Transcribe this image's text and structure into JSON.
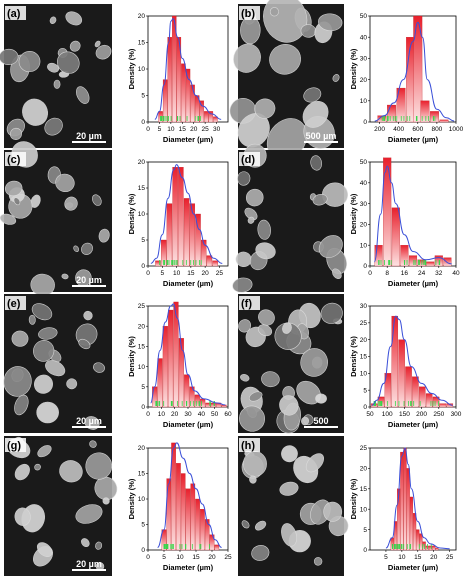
{
  "panels": [
    {
      "letter": "(a)",
      "scale": "20 µm",
      "ylabel": "Density (%)",
      "xlabel": "Diameter (µm)"
    },
    {
      "letter": "(b)",
      "scale": "500 µm",
      "ylabel": "Density (%)",
      "xlabel": "Diameter (µm)"
    },
    {
      "letter": "(c)",
      "scale": "20 µm",
      "ylabel": "Density (%)",
      "xlabel": "Diameter (µm)"
    },
    {
      "letter": "(d)",
      "scale": "",
      "ylabel": "Density (%)",
      "xlabel": "Diameter (µm)"
    },
    {
      "letter": "(e)",
      "scale": "20 µm",
      "ylabel": "Density (%)",
      "xlabel": "Diameter (µm)"
    },
    {
      "letter": "(f)",
      "scale": "500",
      "ylabel": "Density (%)",
      "xlabel": "Diameter (µm)"
    },
    {
      "letter": "(g)",
      "scale": "20 µm",
      "ylabel": "Density (%)",
      "xlabel": "Diameter (µm)"
    },
    {
      "letter": "(h)",
      "scale": "",
      "ylabel": "Density (%)",
      "xlabel": "Diameter (µm)"
    }
  ],
  "colors": {
    "bar_top": "#e8202c",
    "bar_bottom": "#fde3e3",
    "curve": "#3a4fd8",
    "rug": "#38d64a"
  },
  "chart_data": [
    {
      "type": "bar",
      "xlim": [
        0,
        35
      ],
      "ylim": [
        0,
        20
      ],
      "xticks": [
        0,
        5,
        10,
        15,
        20,
        25,
        30
      ],
      "yticks": [
        0,
        5,
        10,
        15,
        20
      ],
      "x": [
        5.5,
        7.5,
        9.5,
        11.5,
        13.5,
        15.5,
        17.5,
        19.5,
        21.5,
        23.5,
        25.5,
        27.5,
        29.5
      ],
      "values": [
        2,
        8,
        16,
        20,
        16,
        11,
        10,
        7,
        5,
        4,
        2,
        2,
        1
      ],
      "curve": [
        [
          3,
          0.5
        ],
        [
          5,
          2
        ],
        [
          7,
          7
        ],
        [
          9,
          15
        ],
        [
          10,
          19
        ],
        [
          11,
          19.5
        ],
        [
          13,
          16
        ],
        [
          15,
          12
        ],
        [
          18,
          8
        ],
        [
          21,
          5
        ],
        [
          24,
          3
        ],
        [
          28,
          1.5
        ],
        [
          32,
          0.5
        ]
      ]
    },
    {
      "type": "bar",
      "xlim": [
        100,
        1000
      ],
      "ylim": [
        0,
        50
      ],
      "xticks": [
        200,
        400,
        600,
        800,
        1000
      ],
      "yticks": [
        0,
        10,
        20,
        30,
        40,
        50
      ],
      "x": [
        225,
        325,
        425,
        525,
        600,
        675,
        775,
        875
      ],
      "values": [
        3,
        8,
        16,
        40,
        50,
        10,
        5,
        1
      ],
      "curve": [
        [
          150,
          0.5
        ],
        [
          250,
          3
        ],
        [
          350,
          9
        ],
        [
          450,
          20
        ],
        [
          550,
          38
        ],
        [
          600,
          47
        ],
        [
          650,
          40
        ],
        [
          700,
          20
        ],
        [
          800,
          6
        ],
        [
          900,
          2
        ],
        [
          980,
          0.5
        ]
      ]
    },
    {
      "type": "bar",
      "xlim": [
        0,
        28
      ],
      "ylim": [
        0,
        20
      ],
      "xticks": [
        0,
        5,
        10,
        15,
        20,
        25
      ],
      "yticks": [
        0,
        5,
        10,
        15,
        20
      ],
      "x": [
        3.5,
        5.5,
        7.5,
        9.5,
        11.5,
        13.5,
        15.5,
        17.5,
        19.5,
        21.5,
        23.5
      ],
      "values": [
        1,
        5,
        12,
        19,
        19,
        13,
        12,
        10,
        5,
        2,
        1
      ],
      "curve": [
        [
          1,
          0.5
        ],
        [
          3,
          1.5
        ],
        [
          5,
          6
        ],
        [
          7,
          13
        ],
        [
          9,
          18.5
        ],
        [
          10,
          19.5
        ],
        [
          12,
          17
        ],
        [
          14,
          14
        ],
        [
          16,
          10
        ],
        [
          18,
          7
        ],
        [
          20,
          4
        ],
        [
          23,
          1.5
        ],
        [
          26,
          0.5
        ]
      ]
    },
    {
      "type": "bar",
      "xlim": [
        0,
        40
      ],
      "ylim": [
        0,
        50
      ],
      "xticks": [
        0,
        8,
        16,
        24,
        32,
        40
      ],
      "yticks": [
        0,
        10,
        20,
        30,
        40,
        50
      ],
      "x": [
        4,
        8,
        12,
        16,
        20,
        24,
        28,
        32,
        36
      ],
      "values": [
        10,
        52,
        28,
        10,
        5,
        3,
        2,
        5,
        4
      ],
      "curve": [
        [
          2,
          2
        ],
        [
          5,
          25
        ],
        [
          7,
          45
        ],
        [
          8,
          48
        ],
        [
          10,
          40
        ],
        [
          12,
          30
        ],
        [
          16,
          15
        ],
        [
          20,
          7
        ],
        [
          26,
          3
        ],
        [
          32,
          4
        ],
        [
          38,
          1
        ]
      ]
    },
    {
      "type": "bar",
      "xlim": [
        0,
        60
      ],
      "ylim": [
        0,
        25
      ],
      "xticks": [
        0,
        10,
        20,
        30,
        40,
        50,
        60
      ],
      "yticks": [
        0,
        5,
        10,
        15,
        20,
        25
      ],
      "x": [
        5,
        9,
        13,
        17,
        21,
        25,
        29,
        33,
        37,
        41,
        45,
        49,
        53,
        57
      ],
      "values": [
        5,
        12,
        20,
        24,
        26,
        17,
        8,
        5,
        3,
        2,
        1,
        1,
        1,
        0.5
      ],
      "curve": [
        [
          2,
          1
        ],
        [
          5,
          5
        ],
        [
          9,
          14
        ],
        [
          13,
          21
        ],
        [
          17,
          25
        ],
        [
          19,
          25.5
        ],
        [
          22,
          22
        ],
        [
          26,
          14
        ],
        [
          30,
          8
        ],
        [
          35,
          4
        ],
        [
          42,
          2
        ],
        [
          52,
          1
        ],
        [
          58,
          0.5
        ]
      ]
    },
    {
      "type": "bar",
      "xlim": [
        50,
        300
      ],
      "ylim": [
        0,
        30
      ],
      "xticks": [
        50,
        100,
        150,
        200,
        250,
        300
      ],
      "yticks": [
        0,
        5,
        10,
        15,
        20,
        25,
        30
      ],
      "x": [
        62,
        82,
        102,
        122,
        142,
        162,
        182,
        202,
        222,
        242,
        262,
        282
      ],
      "values": [
        1,
        3,
        10,
        27,
        20,
        12,
        9,
        6,
        4,
        3,
        1,
        1
      ],
      "curve": [
        [
          55,
          0.5
        ],
        [
          70,
          2
        ],
        [
          90,
          7
        ],
        [
          110,
          18
        ],
        [
          125,
          27
        ],
        [
          135,
          26
        ],
        [
          150,
          20
        ],
        [
          170,
          12
        ],
        [
          200,
          7
        ],
        [
          230,
          4
        ],
        [
          260,
          2
        ],
        [
          290,
          0.5
        ]
      ]
    },
    {
      "type": "bar",
      "xlim": [
        0,
        25
      ],
      "ylim": [
        0,
        20
      ],
      "xticks": [
        0,
        5,
        10,
        15,
        20,
        25
      ],
      "yticks": [
        0,
        5,
        10,
        15,
        20
      ],
      "x": [
        5,
        6.5,
        8,
        9.5,
        11,
        12.5,
        14,
        15.5,
        17,
        18.5,
        20,
        21.5
      ],
      "values": [
        4,
        14,
        21,
        17,
        15,
        12,
        13,
        10,
        8,
        6,
        3,
        1
      ],
      "curve": [
        [
          3,
          0.5
        ],
        [
          5,
          4
        ],
        [
          6.5,
          13
        ],
        [
          8,
          20
        ],
        [
          9,
          21
        ],
        [
          11,
          18
        ],
        [
          13,
          15
        ],
        [
          15,
          12
        ],
        [
          17,
          9
        ],
        [
          19,
          5
        ],
        [
          21,
          2
        ],
        [
          23,
          0.5
        ]
      ]
    },
    {
      "type": "bar",
      "xlim": [
        0,
        27
      ],
      "ylim": [
        0,
        25
      ],
      "xticks": [
        5,
        10,
        15,
        20,
        25
      ],
      "yticks": [
        0,
        5,
        10,
        15,
        20,
        25
      ],
      "x": [
        7,
        8,
        9,
        10,
        11,
        12,
        13,
        14,
        15,
        16,
        17,
        18,
        19,
        20,
        21
      ],
      "values": [
        3,
        7,
        15,
        24,
        25,
        20,
        13,
        9,
        5,
        4,
        2,
        1,
        1,
        1,
        0.5
      ],
      "curve": [
        [
          5,
          0.5
        ],
        [
          7,
          3
        ],
        [
          8.5,
          11
        ],
        [
          10,
          23
        ],
        [
          11,
          25
        ],
        [
          12,
          21
        ],
        [
          13,
          15
        ],
        [
          15,
          7
        ],
        [
          17,
          3
        ],
        [
          19,
          1.5
        ],
        [
          22,
          0.5
        ],
        [
          25,
          0.3
        ]
      ]
    }
  ]
}
